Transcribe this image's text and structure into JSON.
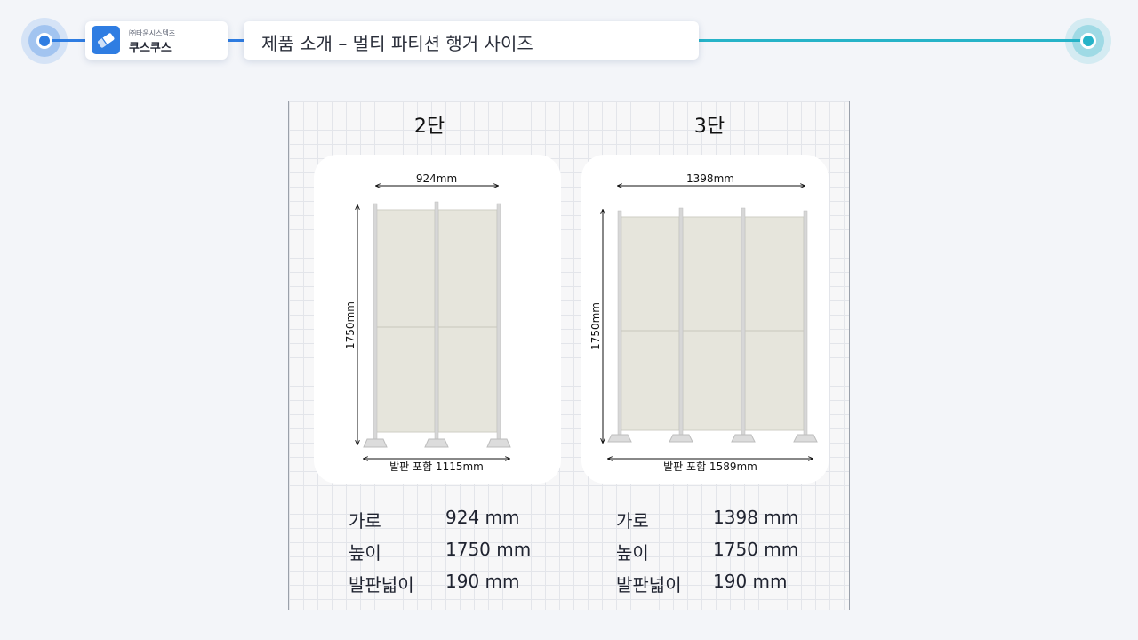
{
  "header": {
    "company": "㈜타운시스템즈",
    "brand": "쿠스쿠스",
    "title": "제품 소개 – 멀티 파티션 행거 사이즈",
    "logo_icon": "eraser-icon",
    "accent_blue": "#2f7de2",
    "accent_teal": "#26b3c8"
  },
  "products": [
    {
      "title": "2단",
      "dim_width": "924mm",
      "dim_height": "1750mm",
      "dim_base": "발판 포함 1115mm",
      "specs": [
        {
          "label": "가로",
          "value": "924 mm"
        },
        {
          "label": "높이",
          "value": "1750 mm"
        },
        {
          "label": "발판넓이",
          "value": "190 mm"
        }
      ]
    },
    {
      "title": "3단",
      "dim_width": "1398mm",
      "dim_height": "1750mm",
      "dim_base": "발판 포함 1589mm",
      "specs": [
        {
          "label": "가로",
          "value": "1398 mm"
        },
        {
          "label": "높이",
          "value": "1750 mm"
        },
        {
          "label": "발판넓이",
          "value": "190 mm"
        }
      ]
    }
  ]
}
